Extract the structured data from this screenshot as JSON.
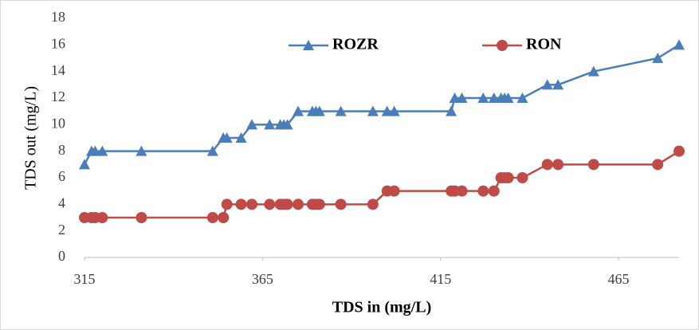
{
  "chart_data": {
    "type": "line",
    "x_label": "TDS in (mg/L)",
    "y_label": "TDS out (mg/L)",
    "x": [
      315,
      317,
      318,
      320,
      331,
      351,
      354,
      355,
      359,
      362,
      367,
      370,
      371,
      372,
      375,
      379,
      380,
      381,
      387,
      396,
      400,
      402,
      418,
      419,
      421,
      427,
      430,
      432,
      433,
      434,
      438,
      445,
      448,
      458,
      476,
      482
    ],
    "series": [
      {
        "name": "ROZR",
        "color": "#4a7ebb",
        "marker": "triangle",
        "values": [
          7,
          8,
          8,
          8,
          8,
          8,
          9,
          9,
          9,
          10,
          10,
          10,
          10,
          10,
          11,
          11,
          11,
          11,
          11,
          11,
          11,
          11,
          11,
          12,
          12,
          12,
          12,
          12,
          12,
          12,
          12,
          13,
          13,
          14,
          15,
          16
        ]
      },
      {
        "name": "RON",
        "color": "#be4b48",
        "marker": "circle",
        "values": [
          3,
          3,
          3,
          3,
          3,
          3,
          3,
          4,
          4,
          4,
          4,
          4,
          4,
          4,
          4,
          4,
          4,
          4,
          4,
          4,
          5,
          5,
          5,
          5,
          5,
          5,
          5,
          6,
          6,
          6,
          6,
          7,
          7,
          7,
          7,
          8
        ]
      }
    ],
    "xlim": [
      315,
      482
    ],
    "xticks": [
      315,
      365,
      415,
      465
    ],
    "ylim": [
      0,
      18
    ],
    "yticks": [
      0,
      2,
      4,
      6,
      8,
      10,
      12,
      14,
      16,
      18
    ],
    "grid": false
  }
}
